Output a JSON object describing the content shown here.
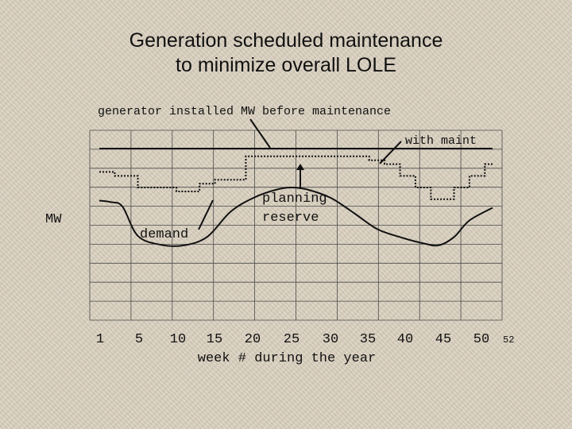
{
  "title_lines": [
    "Generation scheduled maintenance",
    "to minimize overall LOLE"
  ],
  "chart_data": {
    "type": "line",
    "xlabel": "week # during the year",
    "ylabel": "MW",
    "xlim": [
      1,
      52
    ],
    "x_ticks": [
      1,
      5,
      10,
      15,
      20,
      25,
      30,
      35,
      40,
      45,
      50,
      52
    ],
    "y_axis": {
      "tick_labels": false,
      "gridlines": 11
    },
    "grid": true,
    "annotations": [
      {
        "text": "generator installed MW before maintenance",
        "points_to": "installed"
      },
      {
        "text": "with maint",
        "points_to": "with_maint"
      },
      {
        "text": "planning reserve",
        "points_to": "reserve_gap"
      },
      {
        "text": "demand",
        "points_to": "demand"
      }
    ],
    "series": [
      {
        "id": "installed",
        "style": "solid",
        "x": [
          1,
          52
        ],
        "y": [
          1.0,
          1.0
        ]
      },
      {
        "id": "with_maint",
        "style": "dotted-step",
        "x": [
          1,
          3,
          3,
          6,
          6,
          11,
          11,
          14,
          14,
          16,
          16,
          20,
          20,
          36,
          36,
          38,
          38,
          40,
          40,
          42,
          42,
          44,
          44,
          47,
          47,
          49,
          49,
          51,
          51,
          52
        ],
        "y": [
          0.864,
          0.864,
          0.841,
          0.841,
          0.773,
          0.773,
          0.75,
          0.75,
          0.795,
          0.795,
          0.818,
          0.818,
          0.955,
          0.955,
          0.932,
          0.932,
          0.909,
          0.909,
          0.841,
          0.841,
          0.773,
          0.773,
          0.705,
          0.705,
          0.773,
          0.773,
          0.841,
          0.841,
          0.909,
          0.909
        ]
      },
      {
        "id": "demand",
        "style": "solid",
        "x": [
          1,
          2.5,
          4,
          6,
          9,
          12,
          15,
          18,
          21,
          24,
          26,
          28,
          31,
          34,
          37,
          40,
          43,
          45,
          47,
          49,
          52
        ],
        "y": [
          0.697,
          0.688,
          0.662,
          0.491,
          0.439,
          0.436,
          0.486,
          0.631,
          0.713,
          0.761,
          0.773,
          0.761,
          0.713,
          0.625,
          0.532,
          0.484,
          0.448,
          0.436,
          0.484,
          0.581,
          0.655
        ]
      }
    ]
  }
}
